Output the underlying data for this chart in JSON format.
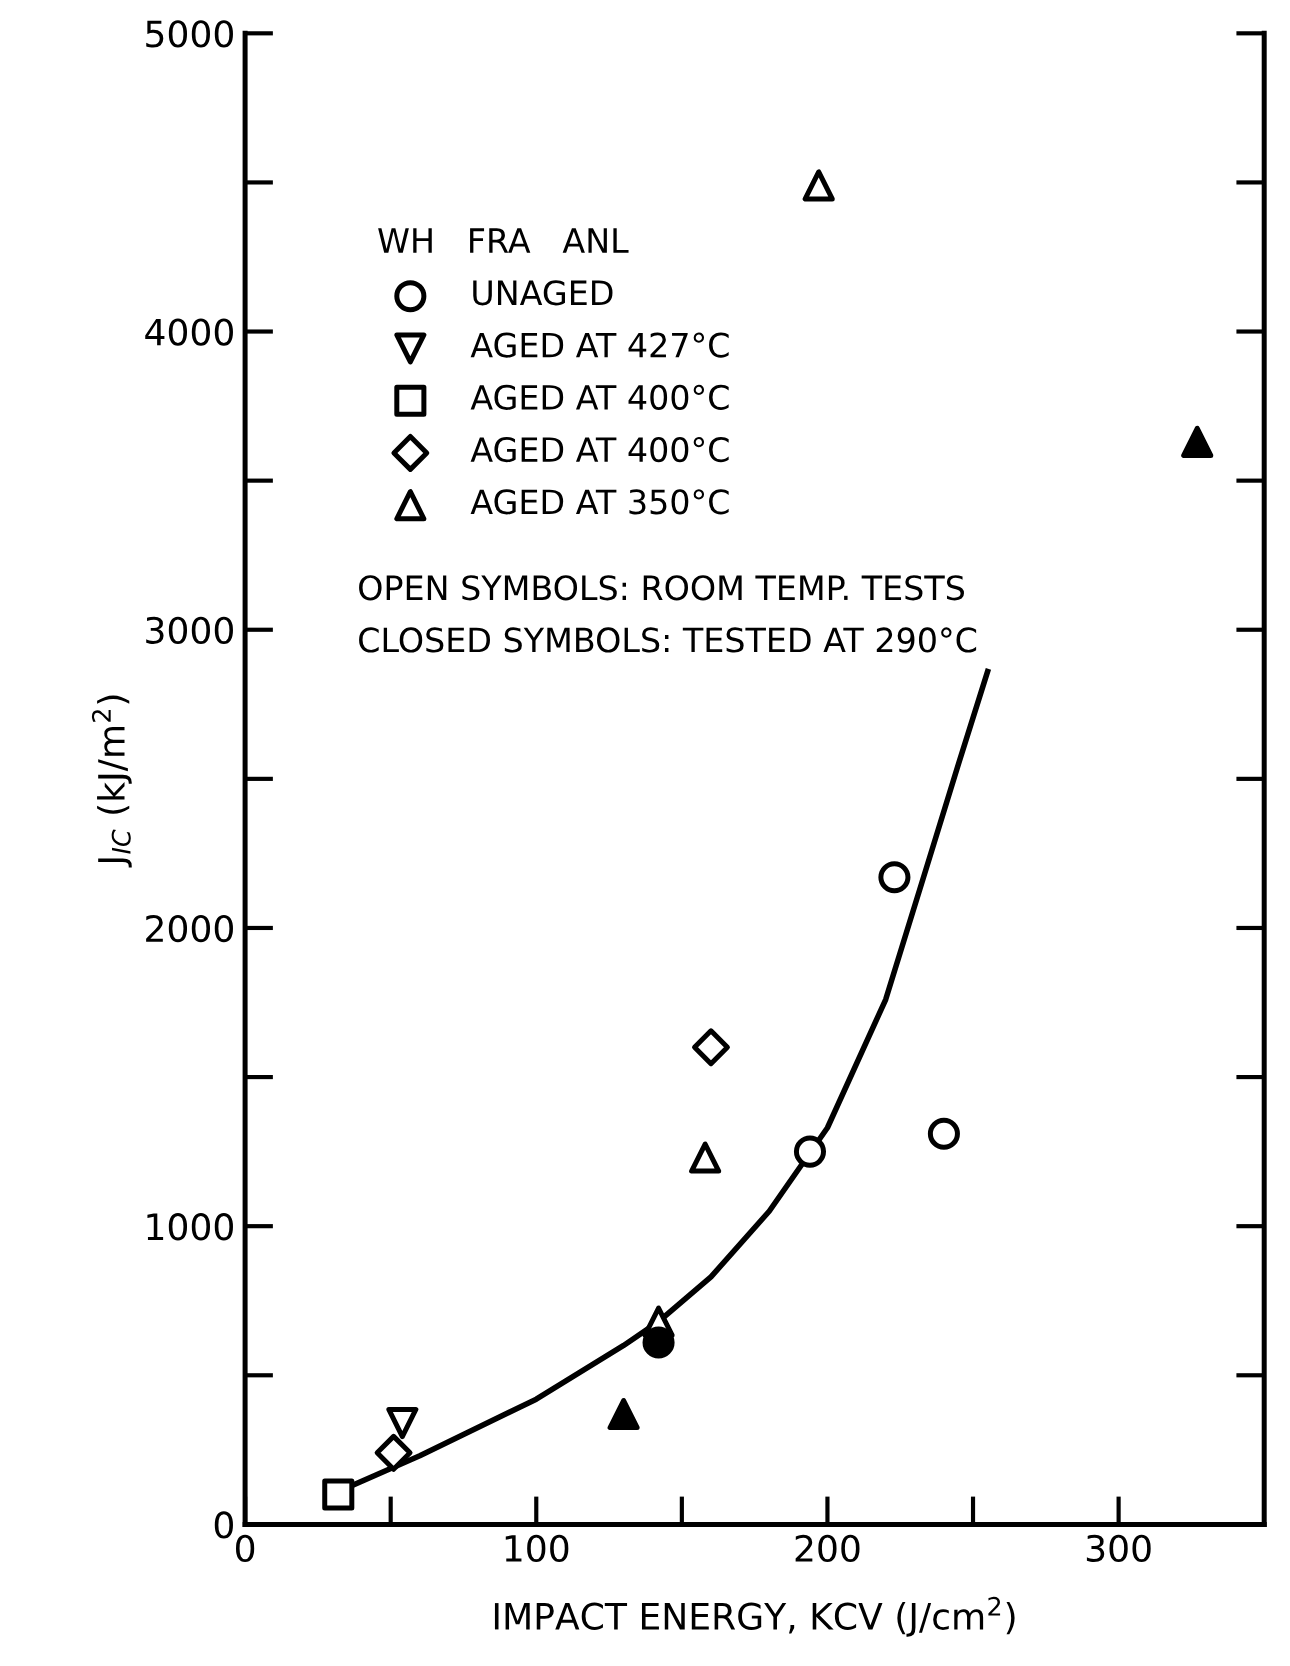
{
  "chart_data": {
    "type": "scatter",
    "xlabel": "IMPACT ENERGY, KCV (J/cm$^{2}$)",
    "ylabel": "J$_{IC}$ (kJ/m$^{2}$)",
    "legend_title": "WH   FRA   ANL",
    "xlim": [
      0,
      350
    ],
    "xticks": [
      0,
      {
        "value": 50,
        "label": null
      },
      100,
      {
        "value": 150,
        "label": null
      },
      200,
      {
        "value": 250,
        "label": null
      },
      300
    ],
    "ylim": [
      0,
      5000
    ],
    "yticks": [
      0,
      {
        "value": 500,
        "label": null
      },
      1000,
      {
        "value": 1500,
        "label": null
      },
      2000,
      {
        "value": 2500,
        "label": null
      },
      3000,
      {
        "value": 3500,
        "label": null
      },
      4000,
      {
        "value": 4500,
        "label": null
      },
      5000
    ],
    "grid": false,
    "legend": "top left",
    "series": [
      {
        "name": "UNAGED",
        "color": "#000000",
        "marker": "circle",
        "x": [
          194,
          223,
          240
        ],
        "values": [
          1250,
          2170,
          1310
        ]
      },
      {
        "name": "AGED AT 427°C",
        "color": "#000000",
        "marker": "triangle_down",
        "x": [
          54
        ],
        "values": [
          340
        ]
      },
      {
        "name": "AGED AT 400°C",
        "color": "#000000",
        "marker": "square",
        "x": [
          32
        ],
        "values": [
          100
        ]
      },
      {
        "name": "AGED AT 400°C",
        "color": "#000000",
        "marker": "diamond",
        "x": [
          51,
          160
        ],
        "values": [
          240,
          1600
        ]
      },
      {
        "name": "AGED AT 350°C",
        "color": "#000000",
        "marker": "triangle",
        "x": [
          142,
          158,
          197
        ],
        "values": [
          680,
          1230,
          4490
        ]
      },
      {
        "color": "#000000",
        "marker": "circle",
        "x": [
          142
        ],
        "values": [
          610
        ]
      },
      {
        "color": "#000000",
        "marker": "triangle",
        "x": [
          130,
          327
        ],
        "values": [
          370,
          3630
        ]
      },
      {
        "type": "line",
        "color": "#000000",
        "marker": "none",
        "x": [
          32,
          60,
          100,
          130,
          142,
          160,
          180,
          200,
          220,
          233,
          245,
          255
        ],
        "values": [
          110,
          230,
          420,
          600,
          680,
          830,
          1050,
          1330,
          1760,
          2170,
          2550,
          2860
        ]
      }
    ],
    "annotations": [
      "OPEN SYMBOLS: ROOM TEMP. TESTS",
      "CLOSED SYMBOLS: TESTED AT 290°C"
    ]
  }
}
